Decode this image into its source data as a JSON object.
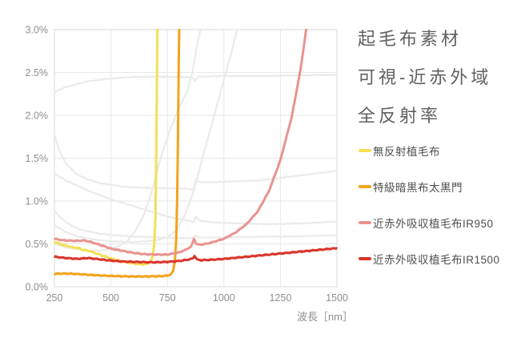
{
  "title": {
    "lines": [
      "起毛布素材",
      "可視-近赤外域",
      "全反射率"
    ]
  },
  "legend": {
    "items": [
      {
        "label": "無反射植毛布",
        "color": "#F5DF55"
      },
      {
        "label": "特級暗黒布太黒門",
        "color": "#F2A41C"
      },
      {
        "label": "近赤外吸収植毛布IR950",
        "color": "#E9938F"
      },
      {
        "label": "近赤外吸収植毛布IR1500",
        "color": "#DB352B"
      }
    ]
  },
  "chart_data": {
    "type": "line",
    "title": "起毛布素材 可視-近赤外域 全反射率",
    "xlabel": "波長［nm］",
    "ylabel": "",
    "x_unit": "nm",
    "y_unit": "%",
    "xlim": [
      250,
      1500
    ],
    "ylim": [
      0,
      3.0
    ],
    "x_ticks": [
      250,
      500,
      750,
      1000,
      1250,
      1500
    ],
    "y_ticks": [
      0,
      0.5,
      1.0,
      1.5,
      2.0,
      2.5,
      3.0
    ],
    "y_tick_labels": [
      "0.0%",
      "0.5%",
      "1.0%",
      "1.5%",
      "2.0%",
      "2.5%",
      "3.0%"
    ],
    "grid": true,
    "legend_position": "right",
    "series": [
      {
        "id": "no-reflection-flocked-fabric",
        "name": "無反射植毛布",
        "color": "#F5DF55",
        "width": 3,
        "points": [
          [
            250,
            0.52
          ],
          [
            300,
            0.48
          ],
          [
            340,
            0.455
          ],
          [
            360,
            0.45
          ],
          [
            375,
            0.43
          ],
          [
            400,
            0.42
          ],
          [
            450,
            0.375
          ],
          [
            500,
            0.33
          ],
          [
            550,
            0.295
          ],
          [
            600,
            0.27
          ],
          [
            640,
            0.26
          ],
          [
            660,
            0.265
          ],
          [
            675,
            0.29
          ],
          [
            685,
            0.35
          ],
          [
            692,
            0.5
          ],
          [
            697,
            0.8
          ],
          [
            700,
            1.4
          ],
          [
            703,
            2.2
          ],
          [
            706,
            3.15
          ]
        ]
      },
      {
        "id": "premium-dark-cloth-futakuromon",
        "name": "特級暗黒布太黒門",
        "color": "#F2A41C",
        "width": 3,
        "points": [
          [
            250,
            0.15
          ],
          [
            300,
            0.155
          ],
          [
            350,
            0.148
          ],
          [
            400,
            0.14
          ],
          [
            450,
            0.132
          ],
          [
            500,
            0.126
          ],
          [
            550,
            0.122
          ],
          [
            600,
            0.12
          ],
          [
            650,
            0.12
          ],
          [
            700,
            0.122
          ],
          [
            730,
            0.125
          ],
          [
            750,
            0.13
          ],
          [
            765,
            0.145
          ],
          [
            775,
            0.18
          ],
          [
            783,
            0.3
          ],
          [
            789,
            0.55
          ],
          [
            793,
            1.0
          ],
          [
            797,
            1.8
          ],
          [
            800,
            2.6
          ],
          [
            803,
            3.15
          ]
        ]
      },
      {
        "id": "nir-absorbing-flocked-ir950",
        "name": "近赤外吸収植毛布IR950",
        "color": "#E9938F",
        "width": 3,
        "points": [
          [
            250,
            0.56
          ],
          [
            280,
            0.545
          ],
          [
            300,
            0.54
          ],
          [
            350,
            0.535
          ],
          [
            380,
            0.54
          ],
          [
            400,
            0.53
          ],
          [
            450,
            0.49
          ],
          [
            500,
            0.445
          ],
          [
            550,
            0.42
          ],
          [
            600,
            0.395
          ],
          [
            650,
            0.38
          ],
          [
            700,
            0.375
          ],
          [
            750,
            0.375
          ],
          [
            800,
            0.4
          ],
          [
            830,
            0.43
          ],
          [
            855,
            0.47
          ],
          [
            868,
            0.56
          ],
          [
            878,
            0.5
          ],
          [
            890,
            0.49
          ],
          [
            920,
            0.5
          ],
          [
            950,
            0.52
          ],
          [
            1000,
            0.56
          ],
          [
            1050,
            0.63
          ],
          [
            1100,
            0.73
          ],
          [
            1150,
            0.88
          ],
          [
            1200,
            1.12
          ],
          [
            1250,
            1.48
          ],
          [
            1300,
            1.98
          ],
          [
            1340,
            2.55
          ],
          [
            1372,
            3.15
          ]
        ]
      },
      {
        "id": "nir-absorbing-flocked-ir1500",
        "name": "近赤外吸収植毛布IR1500",
        "color": "#DB352B",
        "width": 3,
        "points": [
          [
            250,
            0.35
          ],
          [
            300,
            0.335
          ],
          [
            350,
            0.325
          ],
          [
            400,
            0.335
          ],
          [
            450,
            0.32
          ],
          [
            500,
            0.305
          ],
          [
            550,
            0.295
          ],
          [
            600,
            0.29
          ],
          [
            650,
            0.287
          ],
          [
            700,
            0.285
          ],
          [
            750,
            0.29
          ],
          [
            800,
            0.3
          ],
          [
            840,
            0.315
          ],
          [
            862,
            0.33
          ],
          [
            870,
            0.36
          ],
          [
            882,
            0.315
          ],
          [
            900,
            0.31
          ],
          [
            950,
            0.315
          ],
          [
            1000,
            0.325
          ],
          [
            1100,
            0.35
          ],
          [
            1200,
            0.375
          ],
          [
            1300,
            0.4
          ],
          [
            1400,
            0.425
          ],
          [
            1500,
            0.45
          ]
        ]
      }
    ],
    "background_series": [
      {
        "id": "reference-1",
        "name": "",
        "color": "#EAEAEA",
        "width": 2.2,
        "points": [
          [
            250,
            2.27
          ],
          [
            300,
            2.33
          ],
          [
            400,
            2.4
          ],
          [
            500,
            2.43
          ],
          [
            600,
            2.45
          ],
          [
            700,
            2.45
          ],
          [
            800,
            2.45
          ],
          [
            860,
            2.44
          ],
          [
            872,
            2.4
          ],
          [
            885,
            2.45
          ],
          [
            1000,
            2.46
          ],
          [
            1200,
            2.46
          ],
          [
            1400,
            2.47
          ],
          [
            1500,
            2.47
          ]
        ]
      },
      {
        "id": "reference-2",
        "name": "",
        "color": "#EAEAEA",
        "width": 2.2,
        "points": [
          [
            250,
            1.78
          ],
          [
            270,
            1.6
          ],
          [
            300,
            1.44
          ],
          [
            350,
            1.31
          ],
          [
            400,
            1.25
          ],
          [
            450,
            1.21
          ],
          [
            500,
            1.19
          ],
          [
            550,
            1.17
          ],
          [
            600,
            1.16
          ],
          [
            700,
            1.15
          ],
          [
            800,
            1.15
          ],
          [
            855,
            1.14
          ],
          [
            865,
            1.12
          ],
          [
            875,
            1.26
          ],
          [
            890,
            1.22
          ],
          [
            950,
            1.22
          ],
          [
            1050,
            1.23
          ],
          [
            1150,
            1.24
          ],
          [
            1250,
            1.27
          ],
          [
            1400,
            1.32
          ],
          [
            1500,
            1.35
          ]
        ]
      },
      {
        "id": "reference-3",
        "name": "",
        "color": "#EAEAEA",
        "width": 2.2,
        "points": [
          [
            250,
            1.32
          ],
          [
            300,
            1.24
          ],
          [
            350,
            1.18
          ],
          [
            400,
            1.12
          ],
          [
            450,
            1.07
          ],
          [
            500,
            1.02
          ],
          [
            550,
            0.98
          ],
          [
            600,
            0.94
          ],
          [
            650,
            0.9
          ],
          [
            700,
            0.86
          ],
          [
            750,
            0.82
          ],
          [
            800,
            0.79
          ],
          [
            850,
            0.77
          ],
          [
            865,
            0.75
          ],
          [
            875,
            0.82
          ],
          [
            890,
            0.77
          ],
          [
            950,
            0.75
          ],
          [
            1050,
            0.74
          ],
          [
            1200,
            0.73
          ],
          [
            1350,
            0.74
          ],
          [
            1500,
            0.76
          ]
        ]
      },
      {
        "id": "reference-4",
        "name": "",
        "color": "#EAEAEA",
        "width": 2.2,
        "points": [
          [
            250,
            0.88
          ],
          [
            280,
            0.8
          ],
          [
            320,
            0.72
          ],
          [
            360,
            0.67
          ],
          [
            400,
            0.645
          ],
          [
            450,
            0.62
          ],
          [
            500,
            0.605
          ],
          [
            600,
            0.585
          ],
          [
            700,
            0.575
          ],
          [
            800,
            0.57
          ],
          [
            860,
            0.565
          ],
          [
            872,
            0.6
          ],
          [
            885,
            0.575
          ],
          [
            1000,
            0.575
          ],
          [
            1200,
            0.585
          ],
          [
            1350,
            0.59
          ],
          [
            1500,
            0.6
          ]
        ]
      },
      {
        "id": "reference-5",
        "name": "",
        "color": "#EAEAEA",
        "width": 2.2,
        "points": [
          [
            250,
            0.5
          ],
          [
            300,
            0.46
          ],
          [
            350,
            0.44
          ],
          [
            400,
            0.42
          ],
          [
            450,
            0.42
          ],
          [
            500,
            0.44
          ],
          [
            540,
            0.48
          ],
          [
            570,
            0.53
          ],
          [
            600,
            0.62
          ],
          [
            640,
            0.8
          ],
          [
            680,
            1.1
          ],
          [
            720,
            1.5
          ],
          [
            760,
            1.82
          ],
          [
            800,
            2.08
          ],
          [
            838,
            2.28
          ],
          [
            860,
            2.5
          ],
          [
            880,
            2.8
          ],
          [
            900,
            3.05
          ],
          [
            910,
            3.2
          ]
        ]
      },
      {
        "id": "reference-6",
        "name": "",
        "color": "#EAEAEA",
        "width": 2.2,
        "points": [
          [
            250,
            0.72
          ],
          [
            300,
            0.64
          ],
          [
            350,
            0.59
          ],
          [
            400,
            0.56
          ],
          [
            500,
            0.53
          ],
          [
            600,
            0.52
          ],
          [
            700,
            0.54
          ],
          [
            750,
            0.58
          ],
          [
            790,
            0.66
          ],
          [
            830,
            0.85
          ],
          [
            870,
            1.15
          ],
          [
            910,
            1.55
          ],
          [
            955,
            1.98
          ],
          [
            1000,
            2.42
          ],
          [
            1030,
            2.7
          ],
          [
            1058,
            3.0
          ],
          [
            1070,
            3.2
          ]
        ]
      }
    ]
  }
}
